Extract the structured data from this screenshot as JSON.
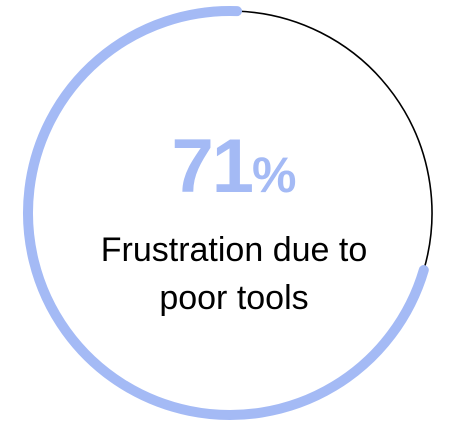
{
  "chart_data": {
    "type": "pie",
    "value": 71,
    "unit": "%",
    "label_lines": [
      "Frustration due to",
      "poor tools"
    ],
    "colors": {
      "filled": "#a4baf5",
      "remainder": "#000000",
      "value_text": "#a4baf5",
      "label_text": "#000000"
    }
  }
}
